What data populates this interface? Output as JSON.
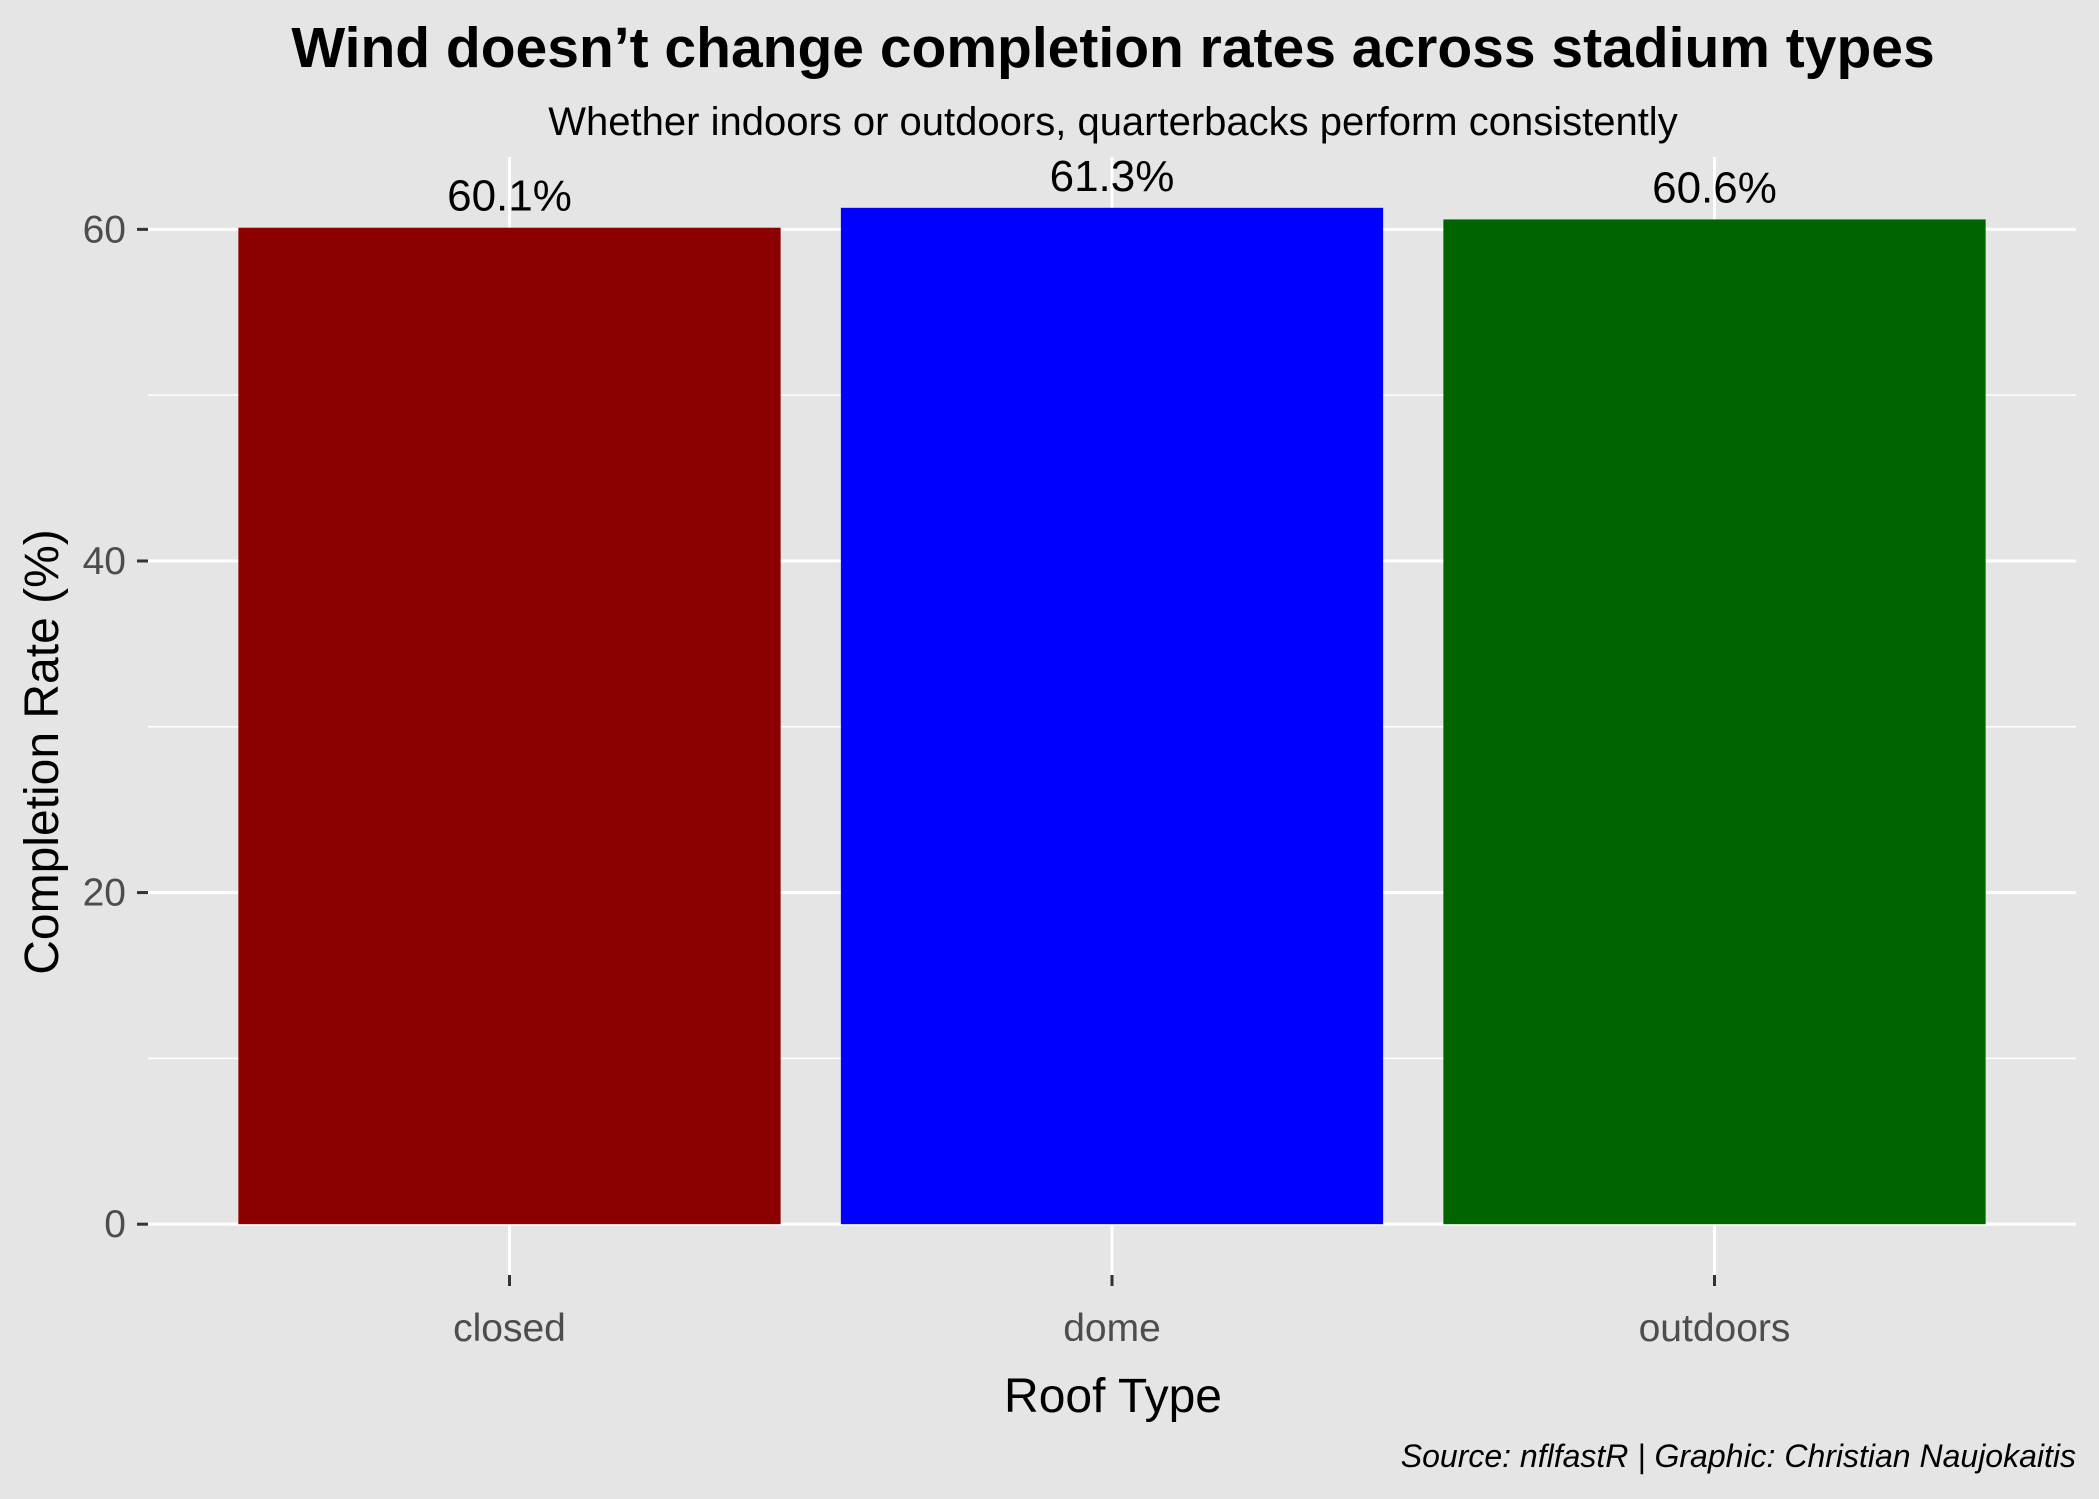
{
  "chart_data": {
    "type": "bar",
    "title": "Wind doesn’t change completion rates across stadium types",
    "subtitle": "Whether indoors or outdoors, quarterbacks perform consistently",
    "caption": "Source: nflfastR | Graphic: Christian Naujokaitis",
    "xlabel": "Roof Type",
    "ylabel": "Completion Rate (%)",
    "categories": [
      "closed",
      "dome",
      "outdoors"
    ],
    "values": [
      60.1,
      61.3,
      60.6
    ],
    "data_labels": [
      "60.1%",
      "61.3%",
      "60.6%"
    ],
    "colors": [
      "#8B0000",
      "#0000FF",
      "#006400"
    ],
    "ylim": [
      -3.065,
      64.365
    ],
    "y_ticks": [
      0,
      20,
      40,
      60
    ],
    "y_tick_labels": [
      "0",
      "20",
      "40",
      "60"
    ],
    "y_minor_ticks": [
      10,
      30,
      50
    ],
    "grid": true,
    "legend": "none",
    "panel_background": "#E5E5E5",
    "grid_color": "#FFFFFF"
  }
}
